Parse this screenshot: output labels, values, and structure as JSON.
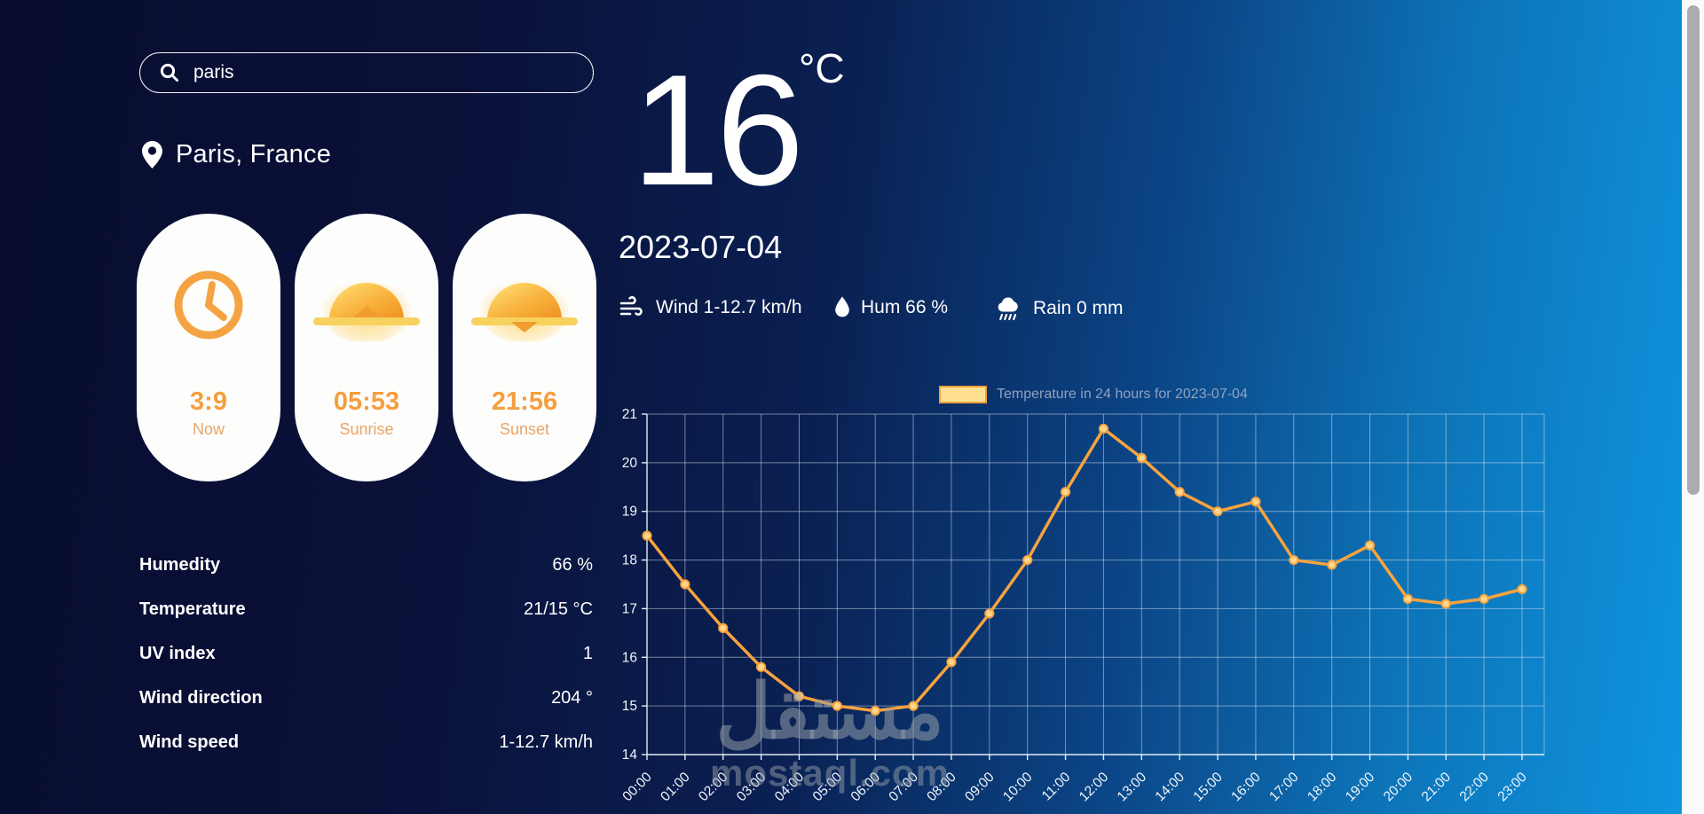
{
  "colors": {
    "accent": "#f5a03c",
    "bg_left": "#080d30",
    "bg_right": "#0f97e3",
    "card_bg": "#fdfdfc",
    "legend_text": "#90a2bd",
    "line": "#f7a33e",
    "point_fill": "#ffd78a"
  },
  "search": {
    "value": "paris"
  },
  "location": {
    "name": "Paris, France"
  },
  "cards": [
    {
      "icon": "clock-icon",
      "time": "3:9",
      "label": "Now"
    },
    {
      "icon": "sunrise-icon",
      "time": "05:53",
      "label": "Sunrise"
    },
    {
      "icon": "sunset-icon",
      "time": "21:56",
      "label": "Sunset"
    }
  ],
  "current": {
    "temp": "16",
    "unit": "°C",
    "date": "2023-07-04",
    "metrics": [
      {
        "icon": "wind-icon",
        "text": "Wind 1-12.7 km/h"
      },
      {
        "icon": "humidity-icon",
        "text": "Hum 66 %"
      },
      {
        "icon": "rain-icon",
        "text": "Rain 0 mm"
      }
    ]
  },
  "stats": [
    {
      "label": "Humedity",
      "value": "66 %"
    },
    {
      "label": "Temperature",
      "value": "21/15 °C"
    },
    {
      "label": "UV index",
      "value": "1"
    },
    {
      "label": "Wind direction",
      "value": "204 °"
    },
    {
      "label": "Wind speed",
      "value": "1-12.7 km/h"
    }
  ],
  "chart_data": {
    "type": "line",
    "title": "Temperature in 24 hours for 2023-07-04",
    "legend_position": "top",
    "grid": true,
    "x": [
      "00:00",
      "01:00",
      "02:00",
      "03:00",
      "04:00",
      "05:00",
      "06:00",
      "07:00",
      "08:00",
      "09:00",
      "10:00",
      "11:00",
      "12:00",
      "13:00",
      "14:00",
      "15:00",
      "16:00",
      "17:00",
      "18:00",
      "19:00",
      "20:00",
      "21:00",
      "22:00",
      "23:00"
    ],
    "values": [
      18.5,
      17.5,
      16.6,
      15.8,
      15.2,
      15.0,
      14.9,
      15.0,
      15.9,
      16.9,
      18.0,
      19.4,
      20.7,
      20.1,
      19.4,
      19.0,
      19.2,
      18.0,
      17.9,
      18.3,
      17.2,
      17.1,
      17.2,
      17.4
    ],
    "xlabel": "",
    "ylabel": "",
    "ylim": [
      14,
      21
    ],
    "yticks": [
      14,
      15,
      16,
      17,
      18,
      19,
      20,
      21
    ],
    "line_color": "#f7a33e",
    "point_fill": "#ffd78a"
  },
  "watermark": {
    "arabic": "مستقل",
    "latin": "mostaql.com"
  }
}
